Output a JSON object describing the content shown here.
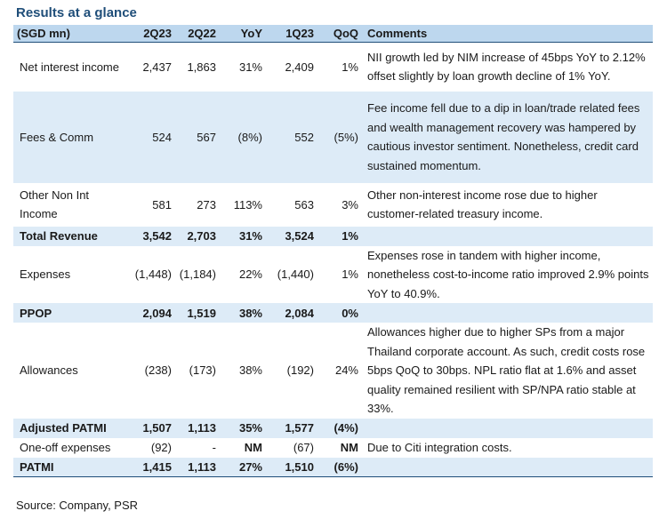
{
  "title": "Results at a glance",
  "columns": [
    "(SGD mn)",
    "2Q23",
    "2Q22",
    "YoY",
    "1Q23",
    "QoQ",
    "Comments"
  ],
  "rows": [
    {
      "label": "Net interest income",
      "q2_23": "2,437",
      "q2_22": "1,863",
      "yoy": "31%",
      "q1_23": "2,409",
      "qoq": "1%",
      "comment": "NII growth led by NIM increase of 45bps YoY to 2.12% offset slightly by loan growth decline of 1% YoY."
    },
    {
      "label": "Fees & Comm",
      "q2_23": "524",
      "q2_22": "567",
      "yoy": "(8%)",
      "q1_23": "552",
      "qoq": "(5%)",
      "comment": "Fee income fell due to a dip in loan/trade related fees and wealth management recovery was hampered by cautious investor sentiment. Nonetheless, credit card sustained momentum."
    },
    {
      "label": "Other Non Int Income",
      "q2_23": "581",
      "q2_22": "273",
      "yoy": "113%",
      "q1_23": "563",
      "qoq": "3%",
      "comment": "Other non-interest income rose due to higher customer-related treasury income."
    },
    {
      "label": "Total Revenue",
      "q2_23": "3,542",
      "q2_22": "2,703",
      "yoy": "31%",
      "q1_23": "3,524",
      "qoq": "1%",
      "comment": ""
    },
    {
      "label": "Expenses",
      "q2_23": "(1,448)",
      "q2_22": "(1,184)",
      "yoy": "22%",
      "q1_23": "(1,440)",
      "qoq": "1%",
      "comment": "Expenses rose in tandem with higher income, nonetheless cost-to-income ratio improved 2.9% points YoY to 40.9%."
    },
    {
      "label": "PPOP",
      "q2_23": "2,094",
      "q2_22": "1,519",
      "yoy": "38%",
      "q1_23": "2,084",
      "qoq": "0%",
      "comment": ""
    },
    {
      "label": "Allowances",
      "q2_23": "(238)",
      "q2_22": "(173)",
      "yoy": "38%",
      "q1_23": "(192)",
      "qoq": "24%",
      "comment": "Allowances higher due to higher SPs from a major Thailand corporate account. As such, credit costs rose 5bps QoQ to 30bps. NPL ratio flat at 1.6% and asset quality remained resilient with SP/NPA ratio stable at 33%."
    },
    {
      "label": "Adjusted PATMI",
      "q2_23": "1,507",
      "q2_22": "1,113",
      "yoy": "35%",
      "q1_23": "1,577",
      "qoq": "(4%)",
      "comment": ""
    },
    {
      "label": "One-off expenses",
      "q2_23": "(92)",
      "q2_22": "-",
      "yoy": "NM",
      "q1_23": "(67)",
      "qoq": "NM",
      "comment": "Due to Citi integration costs."
    },
    {
      "label": "PATMI",
      "q2_23": "1,415",
      "q2_22": "1,113",
      "yoy": "27%",
      "q1_23": "1,510",
      "qoq": "(6%)",
      "comment": ""
    }
  ],
  "source": "Source: Company, PSR",
  "colors": {
    "header_bg": "#bdd7ee",
    "shade_bg": "#ddebf7",
    "title": "#1f4e79",
    "rule": "#1f4e79"
  }
}
